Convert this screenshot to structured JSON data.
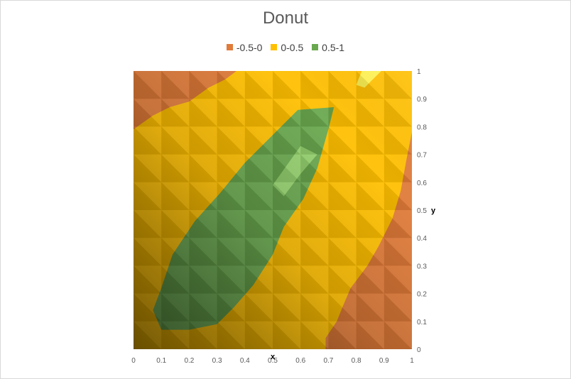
{
  "chart_data": {
    "type": "surface-contour",
    "title": "Donut",
    "xlabel": "x",
    "ylabel": "y",
    "xlim": [
      0,
      1
    ],
    "ylim": [
      0,
      1
    ],
    "x_ticks": [
      "0",
      "0.1",
      "0.2",
      "0.3",
      "0.4",
      "0.5",
      "0.6",
      "0.7",
      "0.8",
      "0.9",
      "1"
    ],
    "y_ticks": [
      "0",
      "0.1",
      "0.2",
      "0.3",
      "0.4",
      "0.5",
      "0.6",
      "0.7",
      "0.8",
      "0.9",
      "1"
    ],
    "legend_position": "top",
    "bands": [
      {
        "name": "-0.5-0",
        "color": "#E07B39"
      },
      {
        "name": "0-0.5",
        "color": "#FFC000"
      },
      {
        "name": "0.5-1",
        "color": "#6AA84F"
      }
    ],
    "regions": {
      "lower_band_top_left": [
        [
          0,
          0.79
        ],
        [
          0.07,
          0.84
        ],
        [
          0.13,
          0.87
        ],
        [
          0.2,
          0.89
        ],
        [
          0.27,
          0.94
        ],
        [
          0.33,
          0.97
        ],
        [
          0.37,
          1
        ],
        [
          0,
          1
        ]
      ],
      "lower_band_bottom_right": [
        [
          1,
          0.78
        ],
        [
          0.98,
          0.68
        ],
        [
          0.96,
          0.57
        ],
        [
          0.93,
          0.47
        ],
        [
          0.88,
          0.37
        ],
        [
          0.84,
          0.3
        ],
        [
          0.78,
          0.22
        ],
        [
          0.75,
          0.15
        ],
        [
          0.73,
          0.1
        ],
        [
          0.69,
          0.04
        ],
        [
          0.69,
          0
        ],
        [
          1,
          0
        ]
      ],
      "upper_band": [
        [
          0.72,
          0.87
        ],
        [
          0.7,
          0.79
        ],
        [
          0.66,
          0.65
        ],
        [
          0.61,
          0.54
        ],
        [
          0.54,
          0.44
        ],
        [
          0.5,
          0.34
        ],
        [
          0.43,
          0.23
        ],
        [
          0.36,
          0.15
        ],
        [
          0.3,
          0.09
        ],
        [
          0.2,
          0.07
        ],
        [
          0.1,
          0.07
        ],
        [
          0.07,
          0.14
        ],
        [
          0.1,
          0.22
        ],
        [
          0.14,
          0.34
        ],
        [
          0.22,
          0.46
        ],
        [
          0.31,
          0.56
        ],
        [
          0.4,
          0.67
        ],
        [
          0.49,
          0.76
        ],
        [
          0.59,
          0.86
        ]
      ],
      "upper_band_highlight": [
        [
          0.6,
          0.73
        ],
        [
          0.55,
          0.66
        ],
        [
          0.5,
          0.59
        ],
        [
          0.54,
          0.55
        ],
        [
          0.6,
          0.63
        ],
        [
          0.66,
          0.7
        ]
      ],
      "top_right_highlight": [
        [
          0.82,
          1
        ],
        [
          0.89,
          1
        ],
        [
          0.86,
          0.97
        ],
        [
          0.83,
          0.94
        ],
        [
          0.8,
          0.95
        ]
      ]
    }
  }
}
